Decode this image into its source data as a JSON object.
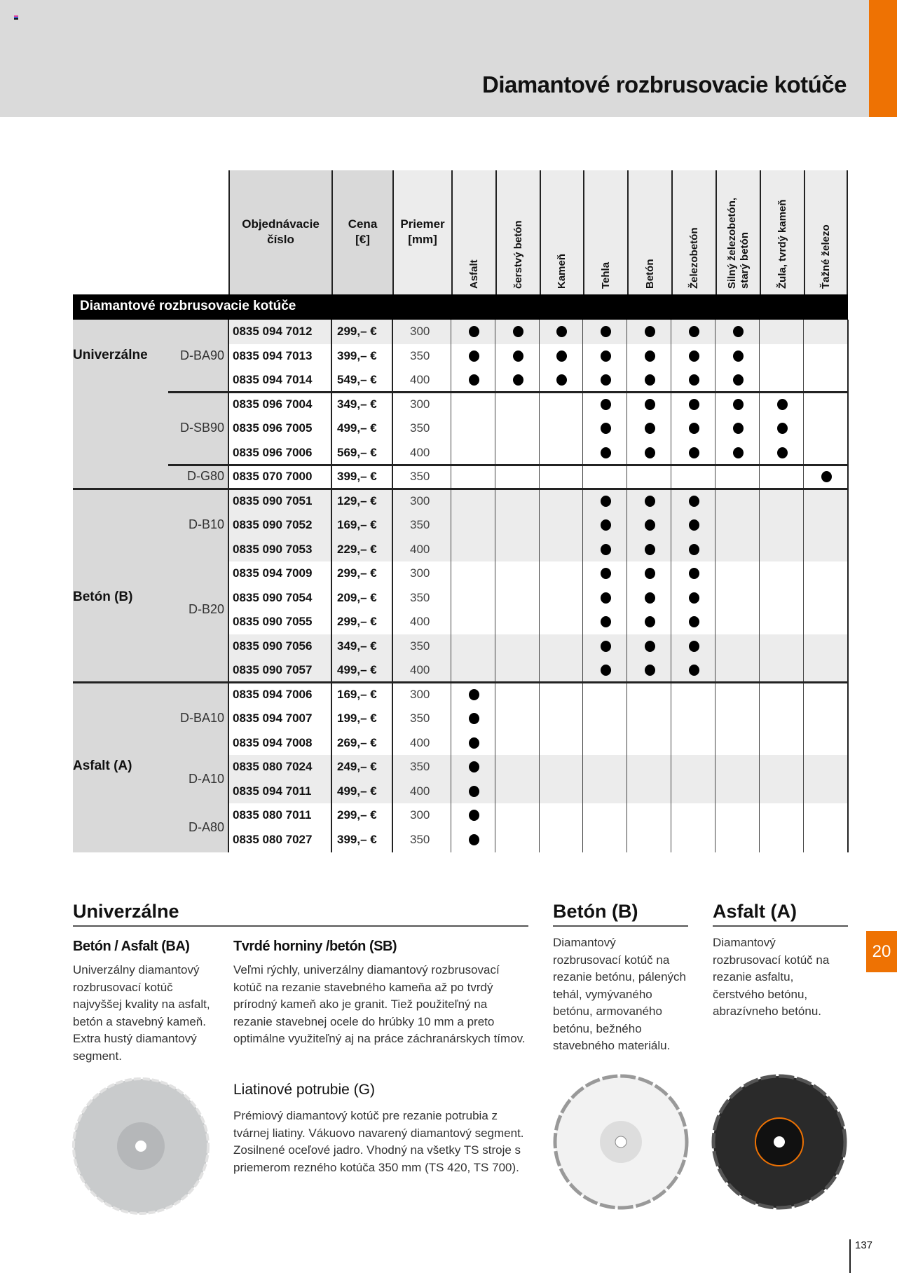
{
  "header": {
    "title": "Diamantové rozbrusovacie kotúče",
    "accent": "#ee7203"
  },
  "table": {
    "columns": {
      "order": "Objednávacie\nčíslo",
      "price": "Cena\n[€]",
      "diameter": "Priemer\n[mm]",
      "materials": [
        "Asfalt",
        "čerstvý betón",
        "Kameň",
        "Tehla",
        "Betón",
        "Železobetón",
        "Silný železobetón,\nstarý betón",
        "Žula, tvrdý kameň",
        "Ťažné železo"
      ]
    },
    "section_title": "Diamantové rozbrusovacie kotúče",
    "groups": [
      {
        "label": "Univerzálne"
      },
      {
        "label": "Betón (B)"
      },
      {
        "label": "Asfalt (A)"
      }
    ],
    "models": [
      {
        "label": "D-BA90"
      },
      {
        "label": "D-SB90"
      },
      {
        "label": "D-G80"
      },
      {
        "label": "D-B10"
      },
      {
        "label": "D-B20"
      },
      {
        "label": "D-BA10"
      },
      {
        "label": "D-A10"
      },
      {
        "label": "D-A80"
      }
    ],
    "rows": [
      {
        "order": "0835 094 7012",
        "price": "299,– €",
        "diameter": "300",
        "marks": [
          1,
          1,
          1,
          1,
          1,
          1,
          1,
          0,
          0
        ],
        "shaded": true
      },
      {
        "order": "0835 094 7013",
        "price": "399,– €",
        "diameter": "350",
        "marks": [
          1,
          1,
          1,
          1,
          1,
          1,
          1,
          0,
          0
        ],
        "shaded": false
      },
      {
        "order": "0835 094 7014",
        "price": "549,– €",
        "diameter": "400",
        "marks": [
          1,
          1,
          1,
          1,
          1,
          1,
          1,
          0,
          0
        ],
        "shaded": false
      },
      {
        "order": "0835 096 7004",
        "price": "349,– €",
        "diameter": "300",
        "marks": [
          0,
          0,
          0,
          1,
          1,
          1,
          1,
          1,
          0
        ],
        "shaded": false
      },
      {
        "order": "0835 096 7005",
        "price": "499,– €",
        "diameter": "350",
        "marks": [
          0,
          0,
          0,
          1,
          1,
          1,
          1,
          1,
          0
        ],
        "shaded": false
      },
      {
        "order": "0835 096 7006",
        "price": "569,– €",
        "diameter": "400",
        "marks": [
          0,
          0,
          0,
          1,
          1,
          1,
          1,
          1,
          0
        ],
        "shaded": false
      },
      {
        "order": "0835 070 7000",
        "price": "399,– €",
        "diameter": "350",
        "marks": [
          0,
          0,
          0,
          0,
          0,
          0,
          0,
          0,
          1
        ],
        "shaded": false
      },
      {
        "order": "0835 090 7051",
        "price": "129,– €",
        "diameter": "300",
        "marks": [
          0,
          0,
          0,
          1,
          1,
          1,
          0,
          0,
          0
        ],
        "shaded": true
      },
      {
        "order": "0835 090 7052",
        "price": "169,– €",
        "diameter": "350",
        "marks": [
          0,
          0,
          0,
          1,
          1,
          1,
          0,
          0,
          0
        ],
        "shaded": true
      },
      {
        "order": "0835 090 7053",
        "price": "229,– €",
        "diameter": "400",
        "marks": [
          0,
          0,
          0,
          1,
          1,
          1,
          0,
          0,
          0
        ],
        "shaded": true
      },
      {
        "order": "0835 094 7009",
        "price": "299,– €",
        "diameter": "300",
        "marks": [
          0,
          0,
          0,
          1,
          1,
          1,
          0,
          0,
          0
        ],
        "shaded": false
      },
      {
        "order": "0835 090 7054",
        "price": "209,– €",
        "diameter": "350",
        "marks": [
          0,
          0,
          0,
          1,
          1,
          1,
          0,
          0,
          0
        ],
        "shaded": false
      },
      {
        "order": "0835 090 7055",
        "price": "299,– €",
        "diameter": "400",
        "marks": [
          0,
          0,
          0,
          1,
          1,
          1,
          0,
          0,
          0
        ],
        "shaded": false
      },
      {
        "order": "0835 090 7056",
        "price": "349,– €",
        "diameter": "350",
        "marks": [
          0,
          0,
          0,
          1,
          1,
          1,
          0,
          0,
          0
        ],
        "shaded": true
      },
      {
        "order": "0835 090 7057",
        "price": "499,– €",
        "diameter": "400",
        "marks": [
          0,
          0,
          0,
          1,
          1,
          1,
          0,
          0,
          0
        ],
        "shaded": true
      },
      {
        "order": "0835 094 7006",
        "price": "169,– €",
        "diameter": "300",
        "marks": [
          1,
          0,
          0,
          0,
          0,
          0,
          0,
          0,
          0
        ],
        "shaded": false
      },
      {
        "order": "0835 094 7007",
        "price": "199,– €",
        "diameter": "350",
        "marks": [
          1,
          0,
          0,
          0,
          0,
          0,
          0,
          0,
          0
        ],
        "shaded": false
      },
      {
        "order": "0835 094 7008",
        "price": "269,– €",
        "diameter": "400",
        "marks": [
          1,
          0,
          0,
          0,
          0,
          0,
          0,
          0,
          0
        ],
        "shaded": false
      },
      {
        "order": "0835 080 7024",
        "price": "249,– €",
        "diameter": "350",
        "marks": [
          1,
          0,
          0,
          0,
          0,
          0,
          0,
          0,
          0
        ],
        "shaded": true
      },
      {
        "order": "0835 094 7011",
        "price": "499,– €",
        "diameter": "400",
        "marks": [
          1,
          0,
          0,
          0,
          0,
          0,
          0,
          0,
          0
        ],
        "shaded": true
      },
      {
        "order": "0835 080 7011",
        "price": "299,– €",
        "diameter": "300",
        "marks": [
          1,
          0,
          0,
          0,
          0,
          0,
          0,
          0,
          0
        ],
        "shaded": false
      },
      {
        "order": "0835 080 7027",
        "price": "399,– €",
        "diameter": "350",
        "marks": [
          1,
          0,
          0,
          0,
          0,
          0,
          0,
          0,
          0
        ],
        "shaded": false
      }
    ]
  },
  "sections": {
    "universal": {
      "title": "Univerzálne",
      "ba_title": "Betón / Asfalt (BA)",
      "ba_text": "Univerzálny diamantový rozbrusovací kotúč najvyššej kvality na asfalt, betón a stavebný kameň. Extra hustý diamantový segment.",
      "sb_title": "Tvrdé horniny /betón (SB)",
      "sb_text": "Veľmi rýchly, univerzálny diamantový rozbrusovací kotúč na rezanie stavebného kameňa až po tvrdý prírodný kameň ako je granit. Tiež použiteľný na rezanie stavebnej ocele do hrúbky 10 mm a preto optimálne využiteľný aj na práce záchranárskych tímov.",
      "g_title": "Liatinové potrubie (G)",
      "g_text": "Prémiový diamantový kotúč pre rezanie potrubia z tvárnej liatiny. Vákuovo navarený diamantový segment. Zosilnené oceľové jadro. Vhodný na všetky TS stroje s priemerom rezného kotúča 350 mm (TS 420, TS 700)."
    },
    "concrete": {
      "title": "Betón (B)",
      "text": "Diamantový rozbrusovací kotúč na rezanie betónu, pálených tehál, vymývaného betónu, armovaného betónu, bežného stavebného materiálu."
    },
    "asphalt": {
      "title": "Asfalt (A)",
      "text": "Diamantový rozbrusovací kotúč na rezanie asfaltu, čerstvého betónu, abrazívneho betónu."
    }
  },
  "chapter_tab": "20",
  "page_number": "137"
}
